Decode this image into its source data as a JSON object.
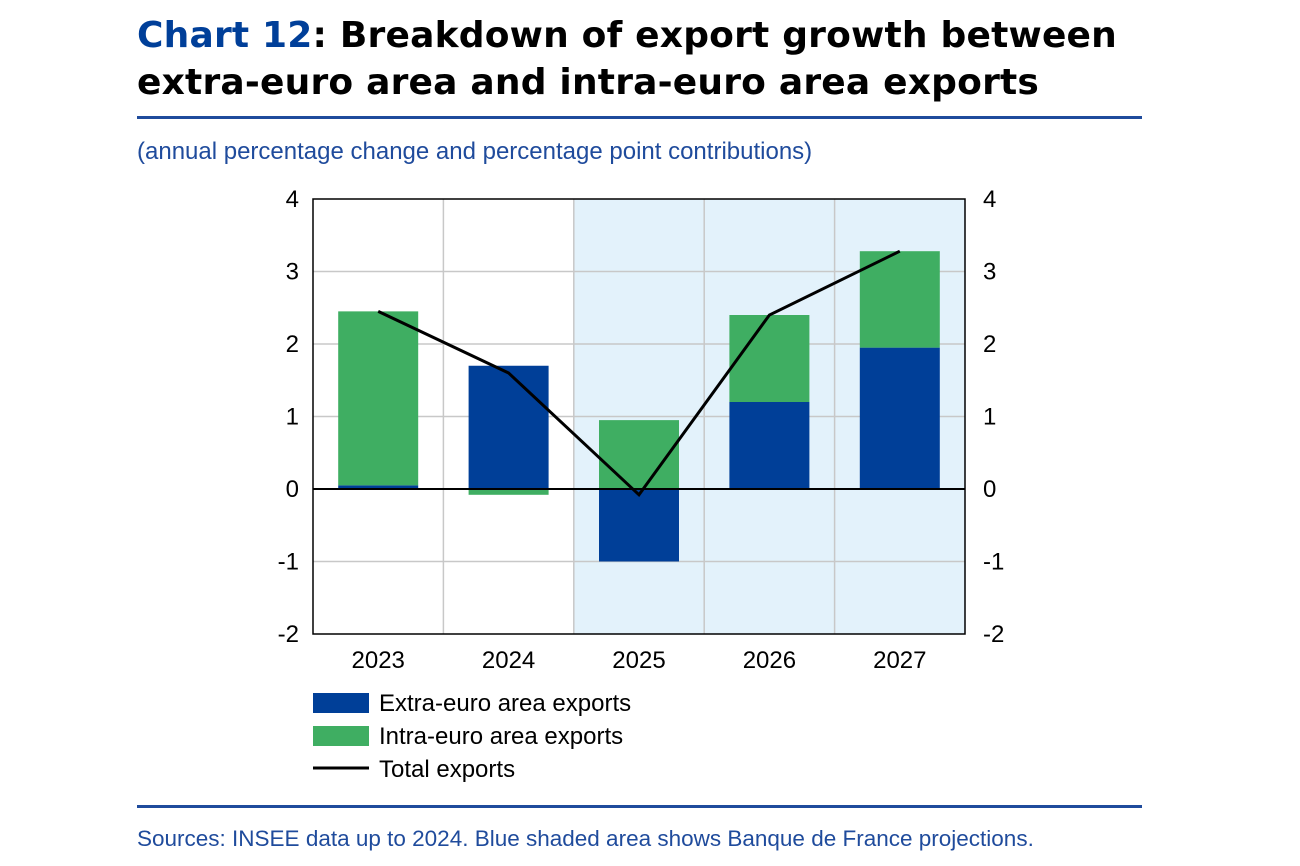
{
  "header": {
    "chart_number": "Chart 12",
    "title_rest": ": Breakdown of export growth between extra-euro area and intra-euro area exports"
  },
  "subtitle": "(annual percentage change and percentage point contributions)",
  "source": "Sources: INSEE data up to 2024. Blue shaded area shows Banque de France projections.",
  "colors": {
    "extra": "#003f98",
    "intra": "#3fae62",
    "total": "#000000",
    "projection_shade": "#e3f2fb",
    "grid": "#c8c8c8",
    "rule": "#1f4b9c"
  },
  "chart_data": {
    "type": "bar",
    "stacked": true,
    "categories": [
      "2023",
      "2024",
      "2025",
      "2026",
      "2027"
    ],
    "series": [
      {
        "name": "Extra-euro area exports",
        "kind": "bar",
        "values": [
          0.05,
          1.7,
          -1.0,
          1.2,
          1.95
        ]
      },
      {
        "name": "Intra-euro area exports",
        "kind": "bar",
        "values": [
          2.4,
          -0.08,
          0.95,
          1.2,
          1.33
        ]
      },
      {
        "name": "Total exports",
        "kind": "line",
        "values": [
          2.45,
          1.6,
          -0.08,
          2.4,
          3.28
        ]
      }
    ],
    "ylim": [
      -2,
      4
    ],
    "yticks": [
      "-2",
      "-1",
      "0",
      "1",
      "2",
      "3",
      "4"
    ],
    "projection_categories": [
      "2025",
      "2026",
      "2027"
    ],
    "grid": true,
    "legend_position": "bottom-left"
  }
}
